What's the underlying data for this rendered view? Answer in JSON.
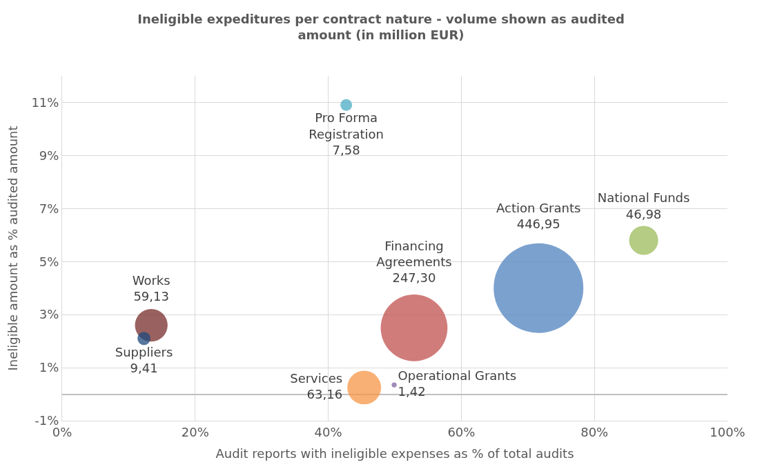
{
  "chart_data": {
    "type": "bubble",
    "title": "Ineligible expeditures per contract nature - volume shown as audited amount (in million EUR)",
    "xlabel": "Audit reports with ineligible expenses as % of total audits",
    "ylabel": "Ineligible amount as % audited amount",
    "series": [
      {
        "name": "Pro Forma Registration",
        "color": "#4bacc6",
        "x": [
          42.7
        ],
        "values": [
          10.9
        ],
        "sizes": [
          7.58
        ],
        "value_labels": [
          "7,58"
        ]
      },
      {
        "name": "National Funds",
        "color": "#9bbb59",
        "x": [
          87.4
        ],
        "values": [
          5.8
        ],
        "sizes": [
          46.98
        ],
        "value_labels": [
          "46,98"
        ]
      },
      {
        "name": "Action Grants",
        "color": "#4f81bd",
        "x": [
          71.6
        ],
        "values": [
          4.0
        ],
        "sizes": [
          446.95
        ],
        "value_labels": [
          "446,95"
        ]
      },
      {
        "name": "Financing Agreements",
        "color": "#c0504d",
        "x": [
          52.9
        ],
        "values": [
          2.5
        ],
        "sizes": [
          247.3
        ],
        "value_labels": [
          "247,30"
        ]
      },
      {
        "name": "Works",
        "color": "#772c2a",
        "x": [
          13.4
        ],
        "values": [
          2.6
        ],
        "sizes": [
          59.13
        ],
        "value_labels": [
          "59,13"
        ]
      },
      {
        "name": "Suppliers",
        "color": "#1f497d",
        "x": [
          12.3
        ],
        "values": [
          2.1
        ],
        "sizes": [
          9.41
        ],
        "value_labels": [
          "9,41"
        ]
      },
      {
        "name": "Services",
        "color": "#f79646",
        "x": [
          45.4
        ],
        "values": [
          0.25
        ],
        "sizes": [
          63.16
        ],
        "value_labels": [
          "63,16"
        ]
      },
      {
        "name": "Operational Grants",
        "color": "#8064a2",
        "x": [
          49.9
        ],
        "values": [
          0.35
        ],
        "sizes": [
          1.42
        ],
        "value_labels": [
          "1,42"
        ]
      }
    ],
    "xlim": [
      0,
      100
    ],
    "ylim": [
      -1,
      12
    ],
    "xticks": [
      {
        "value": 0,
        "label": "0%"
      },
      {
        "value": 20,
        "label": "20%"
      },
      {
        "value": 40,
        "label": "40%"
      },
      {
        "value": 60,
        "label": "60%"
      },
      {
        "value": 80,
        "label": "80%"
      },
      {
        "value": 100,
        "label": "100%"
      }
    ],
    "yticks": [
      {
        "value": -1,
        "label": "-1%"
      },
      {
        "value": 1,
        "label": "1%"
      },
      {
        "value": 3,
        "label": "3%"
      },
      {
        "value": 5,
        "label": "5%"
      },
      {
        "value": 7,
        "label": "7%"
      },
      {
        "value": 9,
        "label": "9%"
      },
      {
        "value": 11,
        "label": "11%"
      }
    ],
    "grid": true
  }
}
